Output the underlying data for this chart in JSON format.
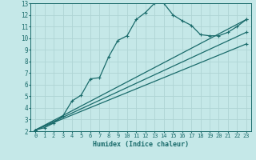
{
  "xlabel": "Humidex (Indice chaleur)",
  "xlim": [
    -0.5,
    23.5
  ],
  "ylim": [
    2,
    13
  ],
  "xticks": [
    0,
    1,
    2,
    3,
    4,
    5,
    6,
    7,
    8,
    9,
    10,
    11,
    12,
    13,
    14,
    15,
    16,
    17,
    18,
    19,
    20,
    21,
    22,
    23
  ],
  "yticks": [
    2,
    3,
    4,
    5,
    6,
    7,
    8,
    9,
    10,
    11,
    12,
    13
  ],
  "bg_color": "#c5e8e8",
  "line_color": "#1a6b6b",
  "grid_color": "#afd4d4",
  "curve1_x": [
    0,
    1,
    2,
    3,
    4,
    5,
    6,
    7,
    8,
    9,
    10,
    11,
    12,
    13,
    14,
    15,
    16,
    17,
    18,
    19,
    20,
    21,
    22,
    23
  ],
  "curve1_y": [
    2.1,
    2.3,
    2.7,
    3.3,
    4.6,
    5.1,
    6.5,
    6.6,
    8.4,
    9.8,
    10.2,
    11.6,
    12.2,
    13.0,
    13.0,
    12.0,
    11.5,
    11.1,
    10.3,
    10.2,
    10.2,
    10.5,
    11.0,
    11.6
  ],
  "straight_lines": [
    {
      "x": [
        0,
        23
      ],
      "y": [
        2.1,
        11.6
      ]
    },
    {
      "x": [
        0,
        23
      ],
      "y": [
        2.1,
        10.5
      ]
    },
    {
      "x": [
        0,
        23
      ],
      "y": [
        2.1,
        9.5
      ]
    }
  ],
  "marker": "+",
  "markersize": 3.5,
  "linewidth": 0.9
}
